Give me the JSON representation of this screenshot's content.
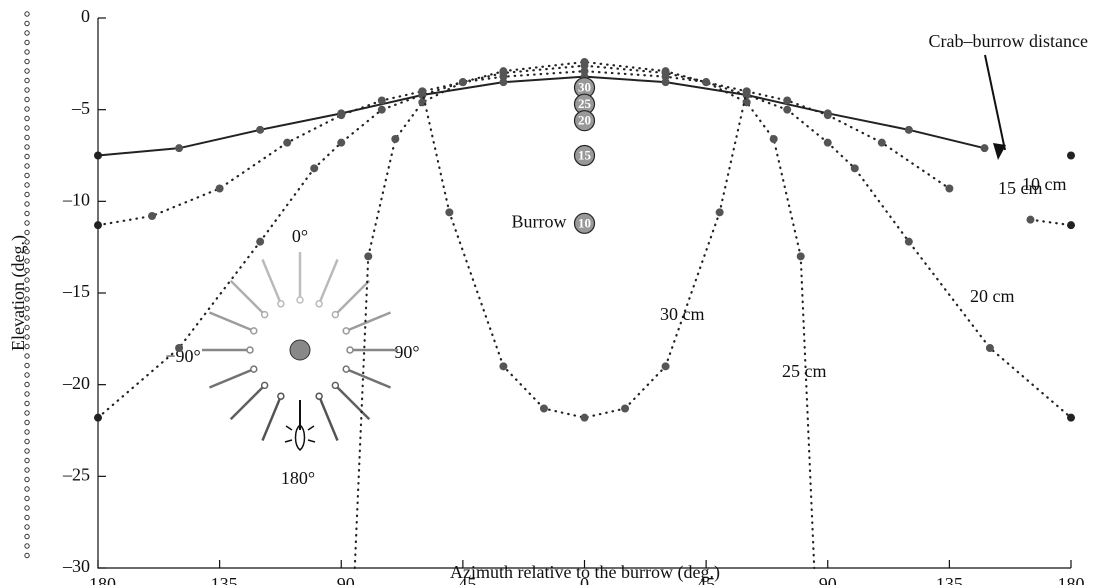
{
  "chart_data": {
    "type": "line",
    "xlabel": "Azimuth relative to the burrow (deg.)",
    "ylabel": "Elevation (deg.)",
    "annotation": "Crab–burrow distance",
    "xlim": [
      -180,
      180
    ],
    "ylim": [
      -30,
      0
    ],
    "xticks": [
      {
        "value": -180,
        "label": "–180"
      },
      {
        "value": -135,
        "label": "–135"
      },
      {
        "value": -90,
        "label": "–90"
      },
      {
        "value": -45,
        "label": "–45"
      },
      0,
      45,
      90,
      135,
      180
    ],
    "yticks": [
      0,
      {
        "value": -5,
        "label": "–5"
      },
      {
        "value": -10,
        "label": "–10"
      },
      {
        "value": -15,
        "label": "–15"
      },
      {
        "value": -20,
        "label": "–20"
      },
      {
        "value": -25,
        "label": "–25"
      },
      {
        "value": -30,
        "label": "–30"
      }
    ],
    "series": [
      {
        "name": "10 cm",
        "color": "#222222",
        "style": "solid",
        "x": [
          -180,
          -150,
          -120,
          -90,
          -60,
          -30,
          0,
          30,
          60,
          90,
          120,
          148,
          165,
          180
        ],
        "values": [
          -7.5,
          -7.1,
          -6.1,
          -5.2,
          -4.2,
          -3.5,
          -3.2,
          -3.5,
          -4.2,
          -5.2,
          -6.1,
          -7.1,
          null,
          -7.5
        ]
      },
      {
        "name": "15 cm",
        "color": "#222222",
        "style": "dotted",
        "x": [
          -180,
          -160,
          -135,
          -110,
          -90,
          -75,
          -60,
          -45,
          -30,
          0,
          30,
          45,
          60,
          75,
          90,
          110,
          135,
          150,
          165,
          180
        ],
        "values": [
          -11.3,
          -10.8,
          -9.3,
          -6.8,
          -5.3,
          -4.5,
          -4.0,
          -3.5,
          -3.2,
          -2.9,
          -3.2,
          -3.5,
          -4.0,
          -4.5,
          -5.3,
          -6.8,
          -9.3,
          null,
          -11.0,
          -11.3
        ]
      },
      {
        "name": "20 cm",
        "color": "#222222",
        "style": "dotted",
        "x": [
          -180,
          -150,
          -120,
          -100,
          -90,
          -75,
          -60,
          -45,
          -30,
          0,
          30,
          45,
          60,
          75,
          90,
          100,
          120,
          150,
          180
        ],
        "values": [
          -21.8,
          -18,
          -12.2,
          -8.2,
          -6.8,
          -5,
          -4.2,
          -3.5,
          -3,
          -2.6,
          -3,
          -3.5,
          -4.2,
          -5,
          -6.8,
          -8.2,
          -12.2,
          -18,
          -21.8
        ]
      },
      {
        "name": "25 cm",
        "color": "#222222",
        "style": "dotted",
        "x": [
          -85,
          -80,
          -70,
          -60,
          -45,
          -30,
          0,
          30,
          45,
          60,
          70,
          80,
          85
        ],
        "values": [
          -30,
          -13,
          -6.6,
          -4.6,
          -3.5,
          -2.9,
          -2.4,
          -2.9,
          -3.5,
          -4.6,
          -6.6,
          -13,
          -30
        ]
      },
      {
        "name": "30 cm",
        "color": "#222222",
        "style": "dotted",
        "x": [
          -60,
          -50,
          -30,
          -15,
          0,
          15,
          30,
          50,
          60
        ],
        "values": [
          -4,
          -10.6,
          -19,
          -21.3,
          -21.8,
          -21.3,
          -19,
          -10.6,
          -4
        ]
      }
    ],
    "burrow": {
      "name": "Burrow",
      "x": 0,
      "labels": [
        "30",
        "25",
        "20",
        "15",
        "10"
      ],
      "values": [
        -3.8,
        -4.7,
        -5.6,
        -7.5,
        -11.2
      ]
    },
    "inset_labels": [
      "0°",
      "90°",
      "−90°",
      "180°"
    ]
  }
}
